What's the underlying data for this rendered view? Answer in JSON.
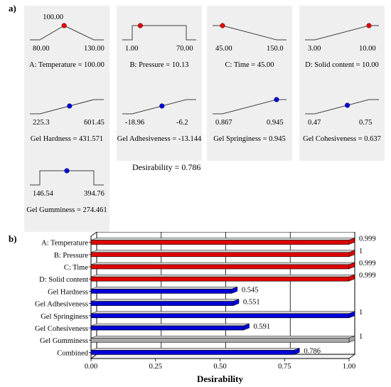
{
  "panel_a": {
    "label": "a)",
    "ramps": [
      {
        "caption": "A: Temperature = 100.00",
        "low": "80.00",
        "high": "130.00",
        "top_value": "100.00",
        "shape": "target",
        "dot": "red",
        "dot_frac": 0.45
      },
      {
        "caption": "B: Pressure = 10.13",
        "low": "1.00",
        "high": "70.00",
        "shape": "range",
        "dot": "red",
        "dot_frac": 0.15
      },
      {
        "caption": "C: Time = 45.00",
        "low": "45.00",
        "high": "150.0",
        "shape": "min",
        "dot": "red",
        "dot_frac": 0.0
      },
      {
        "caption": "D: Solid content = 10.00",
        "low": "3.00",
        "high": "10.00",
        "shape": "max",
        "dot": "red",
        "dot_frac": 1.0
      },
      {
        "caption": "Gel Hardness = 431.571",
        "low": "225.3",
        "high": "601.45",
        "shape": "max",
        "dot": "blue",
        "dot_frac": 0.55
      },
      {
        "caption": "Gel Adhesiveness = -13.144",
        "low": "-18.96",
        "high": "-6.2",
        "shape": "max",
        "dot": "blue",
        "dot_frac": 0.55
      },
      {
        "caption": "Gel Springiness = 0.945",
        "low": "0.867",
        "high": "0.945",
        "shape": "max",
        "dot": "blue",
        "dot_frac": 1.0
      },
      {
        "caption": "Gel Cohesiveness = 0.637",
        "low": "0.47",
        "high": "0.75",
        "shape": "max",
        "dot": "blue",
        "dot_frac": 0.6
      },
      {
        "caption": "Gel Gumminess = 274.461",
        "low": "146.54",
        "high": "394.76",
        "shape": "range",
        "dot": "blue",
        "dot_frac": 0.5
      }
    ],
    "desirability_text": "Desirability = 0.786"
  },
  "panel_b": {
    "label": "b)"
  },
  "colors": {
    "red": "#e00000",
    "blue": "#0000d8",
    "grey": "#a8a8a8",
    "panel_bg": "#efefef"
  },
  "chart_data": {
    "type": "bar",
    "orientation": "horizontal",
    "categories": [
      "A: Temperature",
      "B: Pressure",
      "C: Time",
      "D: Solid content",
      "Gel Hardness",
      "Gel Adhesiveness",
      "Gel Springiness",
      "Gel Cohesiveness",
      "Gel Gumminess",
      "Combined"
    ],
    "values": [
      0.999,
      1,
      0.999,
      0.999,
      0.545,
      0.551,
      1,
      0.591,
      1,
      0.786
    ],
    "value_labels": [
      "0.999",
      "1",
      "0.999",
      "0.999",
      "0.545",
      "0.551",
      "1",
      "0.591",
      "1",
      "0.786"
    ],
    "bar_colors": [
      "red",
      "red",
      "red",
      "red",
      "blue",
      "blue",
      "blue",
      "blue",
      "grey",
      "blue"
    ],
    "xlabel": "Desirability",
    "xlim": [
      0,
      1
    ],
    "xticks": [
      "0.00",
      "0.25",
      "0.50",
      "0.75",
      "1.00"
    ],
    "grid": true
  }
}
